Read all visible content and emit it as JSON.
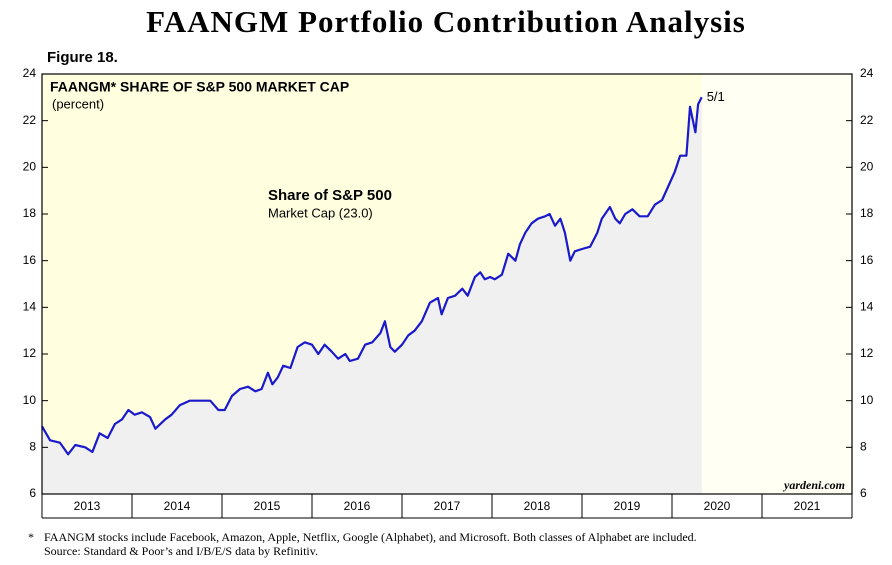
{
  "chart_data": {
    "type": "area-line",
    "title": "FAANGM Portfolio Contribution Analysis",
    "figure_label": "Figure 18.",
    "panel_title": "FAANGM* SHARE OF S&P 500 MARKET CAP",
    "unit_label": "(percent)",
    "annotation_title": "Share of S&P 500",
    "annotation_text": "Market Cap (23.0)",
    "end_label": "5/1",
    "watermark": "yardeni.com",
    "footnote_star": "*",
    "footnote": "FAANGM stocks include Facebook, Amazon, Apple, Netflix, Google (Alphabet), and Microsoft. Both classes of Alphabet are included.",
    "source": "Source: Standard & Poor’s and I/B/E/S data by Refinitiv.",
    "year_labels": [
      "2013",
      "2014",
      "2015",
      "2016",
      "2017",
      "2018",
      "2019",
      "2020",
      "2021"
    ],
    "xlim": [
      2013,
      2022
    ],
    "xticks": [
      2013,
      2014,
      2015,
      2016,
      2017,
      2018,
      2019,
      2020,
      2021,
      2022
    ],
    "ylim": [
      6,
      24
    ],
    "yticks": [
      6,
      8,
      10,
      12,
      14,
      16,
      18,
      20,
      22,
      24
    ],
    "x": [
      2013.0,
      2013.09,
      2013.2,
      2013.29,
      2013.37,
      2013.48,
      2013.56,
      2013.64,
      2013.73,
      2013.81,
      2013.89,
      2013.96,
      2014.03,
      2014.11,
      2014.2,
      2014.26,
      2014.37,
      2014.44,
      2014.53,
      2014.64,
      2014.76,
      2014.87,
      2014.96,
      2015.03,
      2015.11,
      2015.2,
      2015.29,
      2015.37,
      2015.44,
      2015.51,
      2015.56,
      2015.62,
      2015.68,
      2015.76,
      2015.84,
      2015.92,
      2016.0,
      2016.07,
      2016.14,
      2016.22,
      2016.29,
      2016.37,
      2016.42,
      2016.51,
      2016.59,
      2016.67,
      2016.76,
      2016.81,
      2016.87,
      2016.92,
      2017.0,
      2017.07,
      2017.14,
      2017.22,
      2017.31,
      2017.4,
      2017.44,
      2017.51,
      2017.59,
      2017.67,
      2017.73,
      2017.81,
      2017.87,
      2017.92,
      2017.98,
      2018.03,
      2018.11,
      2018.18,
      2018.26,
      2018.31,
      2018.37,
      2018.44,
      2018.51,
      2018.59,
      2018.64,
      2018.7,
      2018.76,
      2018.81,
      2018.87,
      2018.92,
      2019.0,
      2019.09,
      2019.17,
      2019.22,
      2019.31,
      2019.37,
      2019.42,
      2019.48,
      2019.56,
      2019.64,
      2019.73,
      2019.81,
      2019.89,
      2019.96,
      2020.03,
      2020.09,
      2020.16,
      2020.2,
      2020.26,
      2020.29,
      2020.33
    ],
    "series": [
      {
        "name": "Share of S&P 500 Market Cap",
        "color": "#1a1acc",
        "fill": "#f0f0f0",
        "values": [
          8.9,
          8.3,
          8.2,
          7.7,
          8.1,
          8.0,
          7.8,
          8.6,
          8.4,
          9.0,
          9.2,
          9.6,
          9.4,
          9.5,
          9.3,
          8.8,
          9.2,
          9.4,
          9.8,
          10.0,
          10.0,
          10.0,
          9.6,
          9.6,
          10.2,
          10.5,
          10.6,
          10.4,
          10.5,
          11.2,
          10.7,
          11.0,
          11.5,
          11.4,
          12.3,
          12.5,
          12.4,
          12.0,
          12.4,
          12.1,
          11.8,
          12.0,
          11.7,
          11.8,
          12.4,
          12.5,
          12.9,
          13.4,
          12.3,
          12.1,
          12.4,
          12.8,
          13.0,
          13.4,
          14.2,
          14.4,
          13.7,
          14.4,
          14.5,
          14.8,
          14.5,
          15.3,
          15.5,
          15.2,
          15.3,
          15.2,
          15.4,
          16.3,
          16.0,
          16.7,
          17.2,
          17.6,
          17.8,
          17.9,
          18.0,
          17.5,
          17.8,
          17.2,
          16.0,
          16.4,
          16.5,
          16.6,
          17.2,
          17.8,
          18.3,
          17.8,
          17.6,
          18.0,
          18.2,
          17.9,
          17.9,
          18.4,
          18.6,
          19.2,
          19.8,
          20.5,
          20.5,
          22.6,
          21.5,
          22.7,
          23.0
        ]
      }
    ],
    "background_color": "#ffffe0"
  }
}
